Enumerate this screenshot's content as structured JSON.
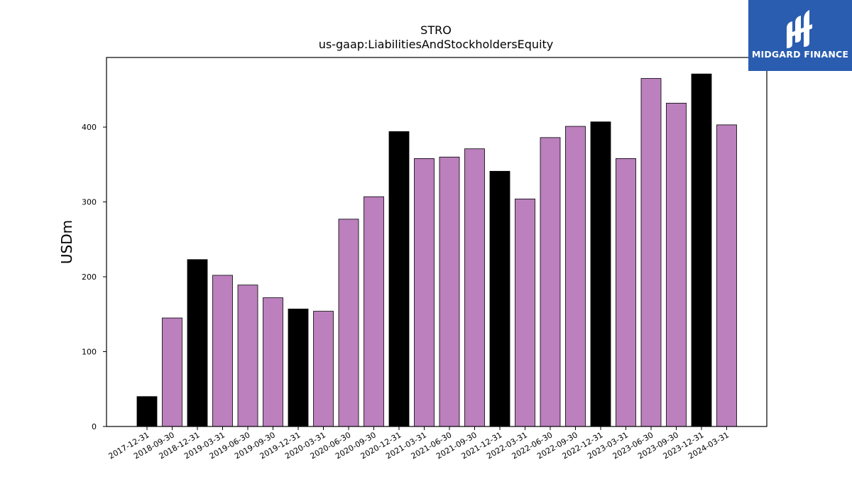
{
  "chart_data": {
    "type": "bar",
    "title": "STRO",
    "subtitle": "us-gaap:LiabilitiesAndStockholdersEquity",
    "xlabel": "",
    "ylabel": "USDm",
    "categories": [
      "2017-12-31",
      "2018-09-30",
      "2018-12-31",
      "2019-03-31",
      "2019-06-30",
      "2019-09-30",
      "2019-12-31",
      "2020-03-31",
      "2020-06-30",
      "2020-09-30",
      "2020-12-31",
      "2021-03-31",
      "2021-06-30",
      "2021-09-30",
      "2021-12-31",
      "2022-03-31",
      "2022-06-30",
      "2022-09-30",
      "2022-12-31",
      "2023-03-31",
      "2023-06-30",
      "2023-09-30",
      "2023-12-31",
      "2024-03-31"
    ],
    "values": [
      40,
      145,
      223,
      202,
      189,
      172,
      157,
      154,
      277,
      307,
      394,
      358,
      360,
      371,
      341,
      304,
      386,
      401,
      407,
      358,
      465,
      432,
      471,
      403
    ],
    "bar_colors": [
      "#000000",
      "#bb80bd",
      "#000000",
      "#bb80bd",
      "#bb80bd",
      "#bb80bd",
      "#000000",
      "#bb80bd",
      "#bb80bd",
      "#bb80bd",
      "#000000",
      "#bb80bd",
      "#bb80bd",
      "#bb80bd",
      "#000000",
      "#bb80bd",
      "#bb80bd",
      "#bb80bd",
      "#000000",
      "#bb80bd",
      "#bb80bd",
      "#bb80bd",
      "#000000",
      "#bb80bd"
    ],
    "yticks": [
      0,
      100,
      200,
      300,
      400
    ],
    "ylim": [
      0,
      493
    ],
    "grid": false
  },
  "logo": {
    "text": "MIDGARD FINANCE",
    "background": "#2a5db0"
  }
}
